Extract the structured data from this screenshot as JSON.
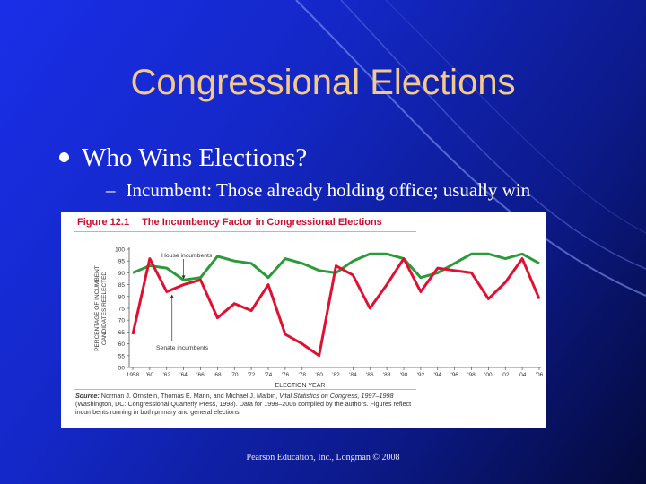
{
  "slide": {
    "title": "Congressional Elections",
    "bullet": "Who Wins Elections?",
    "sub_bullet": "Incumbent: Those already holding office; usually win",
    "footer": "Pearson Education, Inc., Longman © 2008"
  },
  "figure": {
    "number": "Figure 12.1",
    "title": "The Incumbency Factor in Congressional Elections",
    "source_label": "Source:",
    "source_text": "Norman J. Ornstein, Thomas E. Mann, and Michael J. Malbin,",
    "source_book": "Vital Statistics on Congress, 1997–1998",
    "source_rest": "(Washington, DC: Congressional Quarterly Press, 1998). Data for 1998–2006 compiled by the authors. Figures reflect incumbents running in both primary and general elections."
  },
  "chart_data": {
    "type": "line",
    "xlabel": "ELECTION YEAR",
    "ylabel": "PERCENTAGE OF INCUMBENT CANDIDATES REELECTED",
    "ylim": [
      50,
      100
    ],
    "yticks": [
      50,
      55,
      60,
      65,
      70,
      75,
      80,
      85,
      90,
      95,
      100
    ],
    "x": [
      "1958",
      "'60",
      "'62",
      "'64",
      "'66",
      "'68",
      "'70",
      "'72",
      "'74",
      "'76",
      "'78",
      "'80",
      "'82",
      "'84",
      "'86",
      "'88",
      "'90",
      "'92",
      "'94",
      "'96",
      "'98",
      "'00",
      "'02",
      "'04",
      "'06"
    ],
    "series": [
      {
        "name": "House incumbents",
        "color": "#2a9a3a",
        "values": [
          90,
          93,
          92,
          87,
          88,
          97,
          95,
          94,
          88,
          96,
          94,
          91,
          90,
          95,
          98,
          98,
          96,
          88,
          90,
          94,
          98,
          98,
          96,
          98,
          94
        ]
      },
      {
        "name": "Senate incumbents",
        "color": "#e01030",
        "values": [
          64,
          96,
          82,
          85,
          87,
          71,
          77,
          74,
          85,
          64,
          60,
          55,
          93,
          89,
          75,
          85,
          96,
          82,
          92,
          91,
          90,
          79,
          86,
          96,
          79
        ]
      }
    ]
  }
}
